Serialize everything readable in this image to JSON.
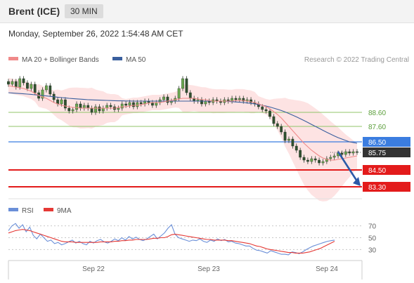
{
  "header": {
    "title": "Brent (ICE)",
    "timeframe": "30 MIN"
  },
  "datetime": "Monday, September 26, 2022 1:54:48 AM CET",
  "credit": "Research © 2022 Trading Central",
  "colors": {
    "ma20": "#f08a8a",
    "ma50": "#3a5f9e",
    "bands": "#fcdada",
    "rsi": "#6a8fd8",
    "rsi_ma": "#e53935",
    "support": "#e31b1b",
    "resistance": "#3b7de0",
    "target": "#90c46a",
    "arrow": "#2b5aa8"
  },
  "chart_data": [
    {
      "type": "candlestick",
      "title": "Brent (ICE)",
      "legend": [
        {
          "name": "MA 20 + Bollinger Bands",
          "color": "#f08a8a"
        },
        {
          "name": "MA 50",
          "color": "#3a5f9e"
        }
      ],
      "x_ticks": [
        "Sep 22",
        "Sep 23",
        "Sep 24"
      ],
      "ylim": [
        82.8,
        91.6
      ],
      "last_price": 85.75,
      "levels": [
        {
          "label": "88.60",
          "value": 88.6,
          "kind": "target"
        },
        {
          "label": "87.60",
          "value": 87.6,
          "kind": "target"
        },
        {
          "label": "86.50",
          "value": 86.5,
          "kind": "resistance"
        },
        {
          "label": "85.75",
          "value": 85.75,
          "kind": "last"
        },
        {
          "label": "84.50",
          "value": 84.5,
          "kind": "support"
        },
        {
          "label": "83.30",
          "value": 83.3,
          "kind": "support"
        }
      ],
      "close": [
        90.6,
        90.8,
        90.4,
        91.0,
        90.7,
        90.3,
        90.6,
        90.0,
        89.6,
        90.2,
        90.5,
        89.9,
        89.5,
        89.2,
        89.5,
        88.9,
        88.7,
        88.8,
        89.2,
        88.9,
        89.1,
        88.9,
        88.6,
        89.0,
        88.7,
        88.9,
        89.1,
        89.0,
        88.8,
        88.9,
        89.2,
        89.1,
        89.3,
        89.0,
        89.3,
        89.2,
        89.4,
        89.3,
        89.1,
        89.3,
        89.5,
        89.7,
        89.3,
        89.4,
        89.6,
        90.3,
        91.0,
        90.0,
        89.6,
        89.4,
        89.5,
        89.2,
        89.4,
        89.3,
        89.5,
        89.4,
        89.3,
        89.5,
        89.4,
        89.6,
        89.5,
        89.6,
        89.4,
        89.5,
        89.3,
        89.2,
        89.0,
        88.8,
        88.7,
        88.3,
        87.8,
        87.6,
        87.2,
        86.6,
        86.7,
        86.2,
        85.9,
        85.4,
        85.2,
        85.1,
        85.3,
        85.2,
        85.0,
        85.1,
        85.3,
        85.4,
        85.5,
        85.7,
        85.6,
        85.8,
        85.7,
        85.8,
        85.75
      ],
      "ma20": [
        90.5,
        90.45,
        90.4,
        90.35,
        90.3,
        90.2,
        90.1,
        89.95,
        89.8,
        89.7,
        89.6,
        89.45,
        89.3,
        89.2,
        89.1,
        89.05,
        89.0,
        88.95,
        88.95,
        88.9,
        88.9,
        88.9,
        88.9,
        88.9,
        88.9,
        88.9,
        88.9,
        88.9,
        88.9,
        88.95,
        89.0,
        89.0,
        89.05,
        89.1,
        89.1,
        89.15,
        89.2,
        89.25,
        89.3,
        89.3,
        89.3,
        89.35,
        89.4,
        89.45,
        89.5,
        89.55,
        89.6,
        89.6,
        89.6,
        89.6,
        89.55,
        89.5,
        89.5,
        89.45,
        89.4,
        89.4,
        89.4,
        89.4,
        89.4,
        89.4,
        89.45,
        89.45,
        89.45,
        89.4,
        89.35,
        89.3,
        89.2,
        89.1,
        89.0,
        88.85,
        88.65,
        88.45,
        88.2,
        87.9,
        87.6,
        87.3,
        87.0,
        86.7,
        86.4,
        86.15,
        85.9,
        85.7,
        85.5,
        85.35,
        85.25,
        85.2,
        85.2,
        85.25,
        85.3,
        85.35,
        85.4,
        85.45,
        85.5
      ],
      "ma50": [
        90.0,
        89.98,
        89.96,
        89.94,
        89.92,
        89.9,
        89.88,
        89.85,
        89.82,
        89.8,
        89.77,
        89.74,
        89.71,
        89.68,
        89.65,
        89.63,
        89.6,
        89.58,
        89.56,
        89.54,
        89.52,
        89.5,
        89.49,
        89.48,
        89.47,
        89.46,
        89.45,
        89.44,
        89.43,
        89.42,
        89.42,
        89.41,
        89.41,
        89.4,
        89.4,
        89.4,
        89.4,
        89.4,
        89.4,
        89.4,
        89.4,
        89.4,
        89.4,
        89.4,
        89.4,
        89.4,
        89.4,
        89.4,
        89.4,
        89.4,
        89.4,
        89.4,
        89.4,
        89.4,
        89.4,
        89.4,
        89.4,
        89.4,
        89.38,
        89.36,
        89.34,
        89.32,
        89.3,
        89.27,
        89.24,
        89.2,
        89.15,
        89.1,
        89.05,
        88.98,
        88.9,
        88.82,
        88.73,
        88.63,
        88.52,
        88.4,
        88.28,
        88.15,
        88.02,
        87.88,
        87.74,
        87.6,
        87.46,
        87.32,
        87.18,
        87.05,
        86.92,
        86.8,
        86.7,
        86.6,
        86.5,
        86.45,
        86.4
      ],
      "forecast_arrow": {
        "from": 85.75,
        "to": 83.3
      }
    },
    {
      "type": "line",
      "legend": [
        {
          "name": "RSI",
          "color": "#6a8fd8"
        },
        {
          "name": "9MA",
          "color": "#e53935"
        }
      ],
      "y_ticks": [
        {
          "label": "70",
          "value": 70
        },
        {
          "label": "50",
          "value": 50
        },
        {
          "label": "30",
          "value": 30
        }
      ],
      "ylim": [
        15,
        85
      ],
      "series": [
        {
          "name": "RSI",
          "values": [
            62,
            70,
            74,
            66,
            72,
            60,
            68,
            54,
            48,
            56,
            50,
            44,
            46,
            40,
            42,
            38,
            40,
            43,
            46,
            41,
            44,
            40,
            38,
            44,
            41,
            45,
            47,
            43,
            41,
            44,
            48,
            45,
            50,
            46,
            52,
            48,
            51,
            47,
            45,
            48,
            52,
            56,
            48,
            53,
            58,
            66,
            72,
            56,
            50,
            48,
            46,
            44,
            46,
            45,
            48,
            44,
            42,
            46,
            44,
            48,
            45,
            47,
            43,
            44,
            41,
            40,
            38,
            36,
            36,
            32,
            29,
            28,
            26,
            24,
            28,
            26,
            24,
            22,
            22,
            21,
            26,
            25,
            23,
            26,
            30,
            33,
            36,
            38,
            40,
            42,
            44,
            45,
            46
          ]
        },
        {
          "name": "9MA",
          "values": [
            58,
            60,
            62,
            63,
            64,
            63,
            62,
            60,
            58,
            56,
            54,
            52,
            50,
            48,
            46,
            44,
            43,
            43,
            43,
            42,
            42,
            42,
            42,
            42,
            42,
            42,
            43,
            43,
            43,
            43,
            44,
            44,
            45,
            45,
            46,
            46,
            47,
            47,
            47,
            47,
            48,
            49,
            49,
            50,
            50,
            52,
            55,
            56,
            55,
            54,
            53,
            52,
            51,
            50,
            49,
            48,
            47,
            47,
            46,
            46,
            46,
            46,
            45,
            45,
            44,
            43,
            42,
            41,
            40,
            38,
            36,
            35,
            33,
            31,
            30,
            29,
            28,
            27,
            26,
            25,
            25,
            24,
            24,
            24,
            25,
            26,
            28,
            30,
            32,
            35,
            38,
            41,
            44
          ]
        }
      ]
    }
  ]
}
